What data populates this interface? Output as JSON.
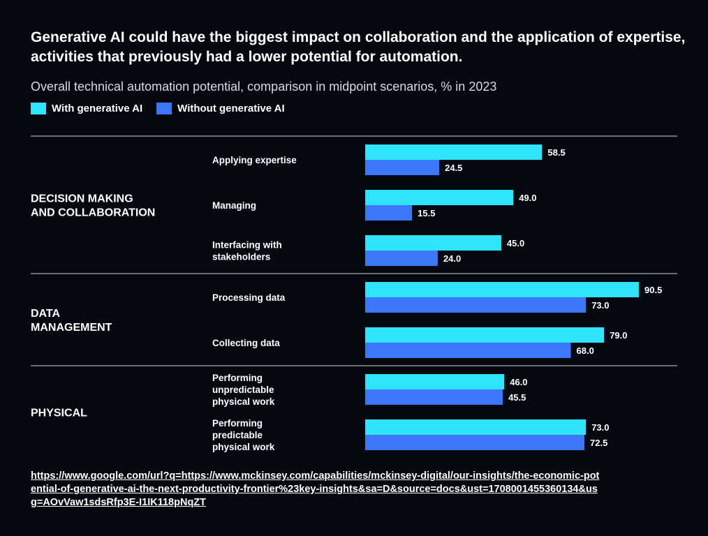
{
  "title": "Generative AI could have the biggest impact on collaboration and the application of expertise, activities that previously had a lower potential for automation.",
  "subtitle": "Overall technical automation potential, comparison in midpoint scenarios, % in 2023",
  "source_url": "https://www.google.com/url?q=https://www.mckinsey.com/capabilities/mckinsey-digital/our-insights/the-economic-potential-of-generative-ai-the-next-productivity-frontier%23key-insights&sa=D&source=docs&ust=1708001455360134&usg=AOvVaw1sdsRfp3E-I1IK118pNqZT",
  "chart_data": {
    "type": "bar",
    "orientation": "horizontal",
    "title": "Generative AI could have the biggest impact on collaboration and the application of expertise, activities that previously had a lower potential for automation.",
    "subtitle": "Overall technical automation potential, comparison in midpoint scenarios, % in 2023",
    "legend_position": "top-left",
    "grid": false,
    "colors": {
      "with": "#2fe3fb",
      "without": "#3a77fb",
      "background": "#06080f"
    },
    "groups": [
      {
        "label": "DECISION MAKING\nAND COLLABORATION",
        "categories": [
          "Applying expertise",
          "Managing",
          "Interfacing with\nstakeholders"
        ]
      },
      {
        "label": "DATA\nMANAGEMENT",
        "categories": [
          "Processing data",
          "Collecting data"
        ]
      },
      {
        "label": "PHYSICAL",
        "categories": [
          "Performing\nunpredictable\nphysical work",
          "Performing\npredictable\nphysical work"
        ]
      }
    ],
    "categories": [
      "Applying expertise",
      "Managing",
      "Interfacing with stakeholders",
      "Processing data",
      "Collecting data",
      "Performing unpredictable physical work",
      "Performing predictable physical work"
    ],
    "series": [
      {
        "name": "With generative AI",
        "values": [
          58.5,
          49.0,
          45.0,
          90.5,
          79.0,
          46.0,
          73.0
        ]
      },
      {
        "name": "Without generative AI",
        "values": [
          24.5,
          15.5,
          24.0,
          73.0,
          68.0,
          45.5,
          72.5
        ]
      }
    ]
  }
}
